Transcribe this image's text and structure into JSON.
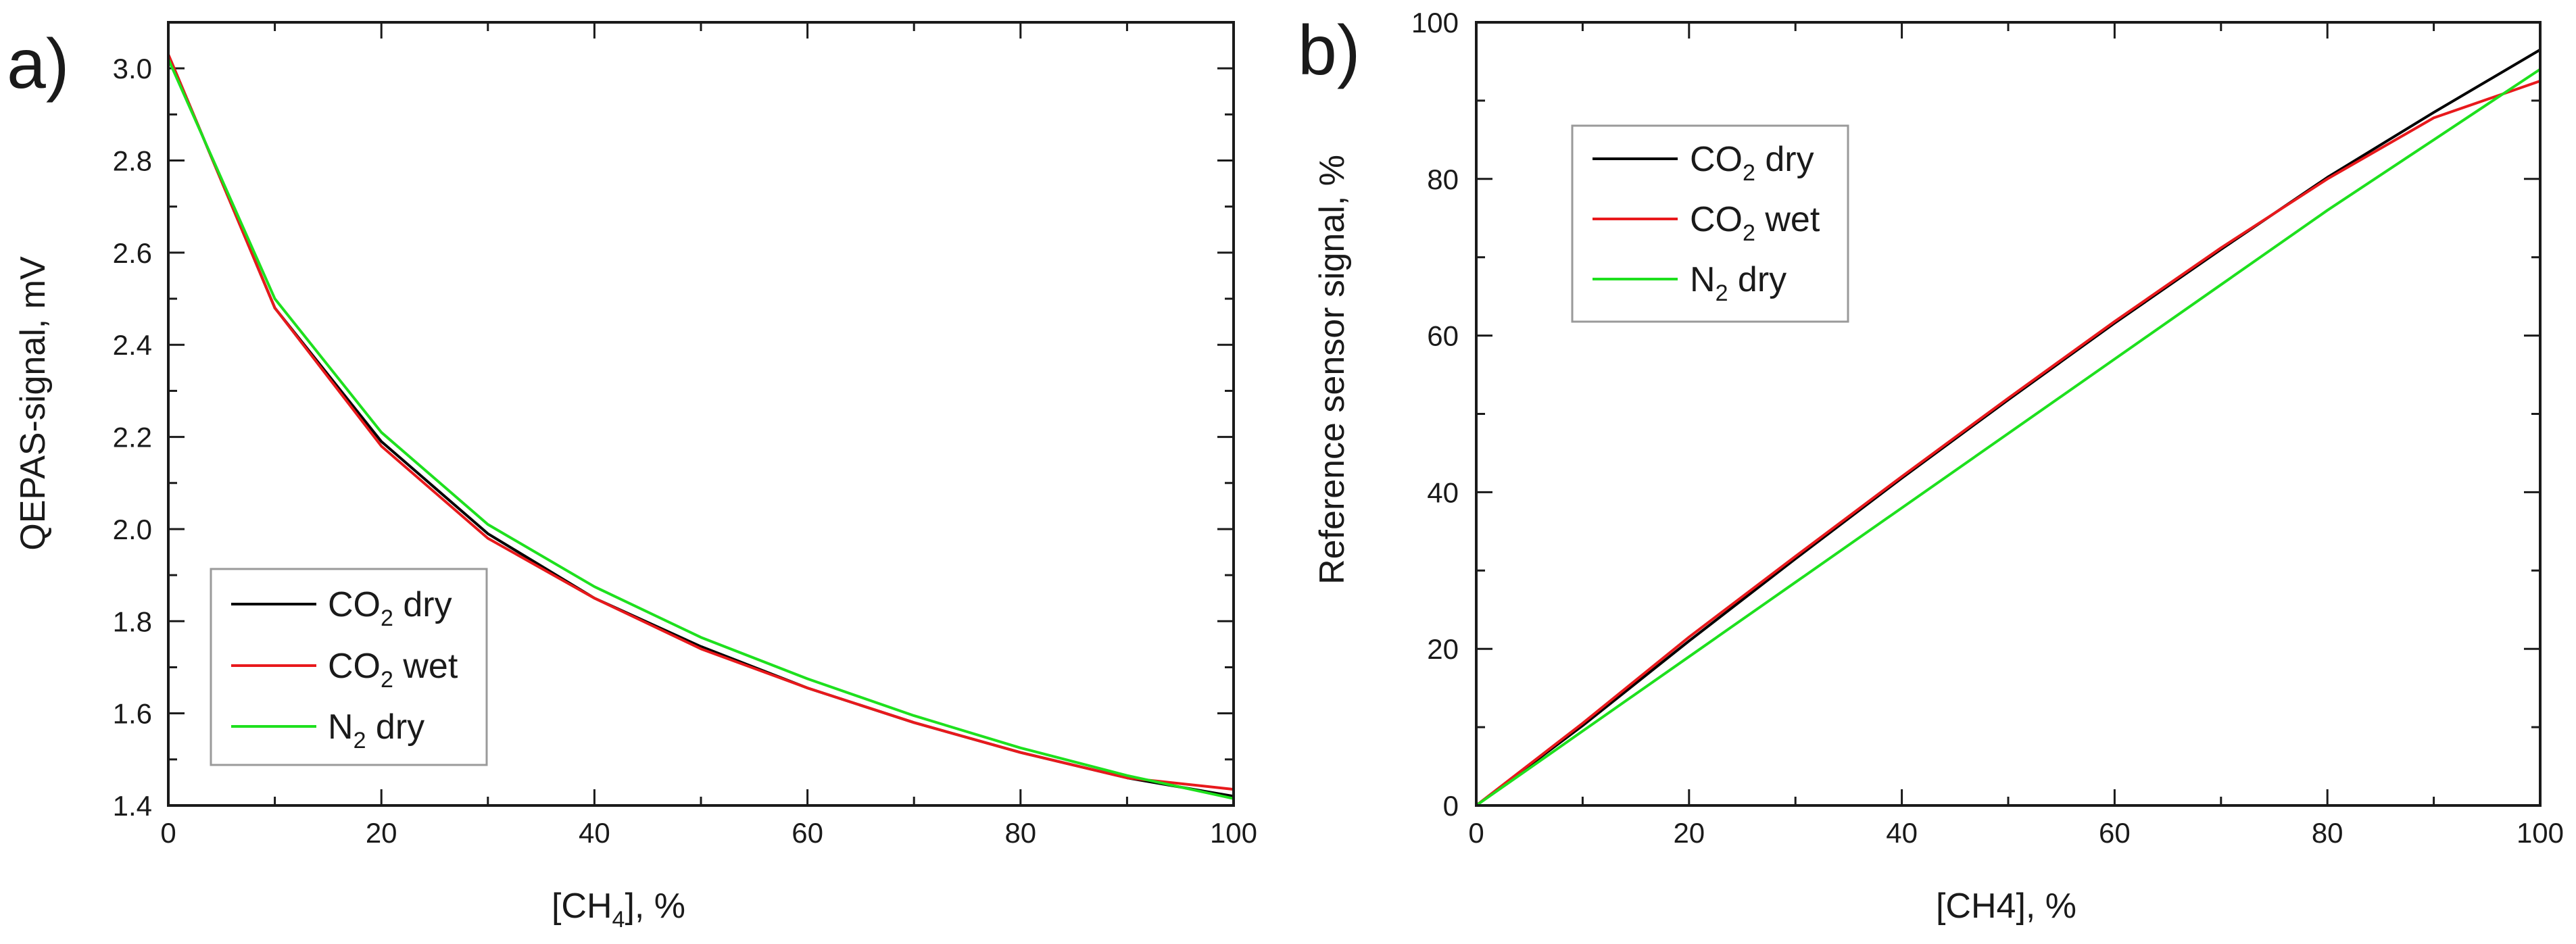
{
  "chart_data": [
    {
      "id": "a",
      "type": "line",
      "panel_label": "a)",
      "xlabel": {
        "main": "[CH",
        "sub": "4",
        "tail": "], %"
      },
      "ylabel": "QEPAS-signal, mV",
      "xlim": [
        0,
        100
      ],
      "ylim": [
        1.4,
        3.1
      ],
      "xticks": [
        0,
        20,
        40,
        60,
        80,
        100
      ],
      "xtick_labels": [
        "0",
        "20",
        "40",
        "60",
        "80",
        "100"
      ],
      "yticks": [
        1.4,
        1.6,
        1.8,
        2.0,
        2.2,
        2.4,
        2.6,
        2.8,
        3.0
      ],
      "ytick_labels": [
        "1.4",
        "1.6",
        "1.8",
        "2.0",
        "2.2",
        "2.4",
        "2.6",
        "2.8",
        "3.0"
      ],
      "legend_position": "bottom-left",
      "x": [
        0,
        10,
        20,
        30,
        40,
        50,
        60,
        70,
        80,
        90,
        100
      ],
      "series": [
        {
          "name": "CO2 dry",
          "label": {
            "main": "CO",
            "sub": "2",
            "tail": " dry"
          },
          "color": "#000000",
          "values": [
            3.03,
            2.48,
            2.19,
            1.99,
            1.85,
            1.745,
            1.655,
            1.58,
            1.515,
            1.46,
            1.42
          ]
        },
        {
          "name": "CO2 wet",
          "label": {
            "main": "CO",
            "sub": "2",
            "tail": " wet"
          },
          "color": "#e8191c",
          "values": [
            3.03,
            2.48,
            2.18,
            1.98,
            1.85,
            1.74,
            1.655,
            1.58,
            1.515,
            1.46,
            1.435
          ]
        },
        {
          "name": "N2 dry",
          "label": {
            "main": "N",
            "sub": "2",
            "tail": " dry"
          },
          "color": "#1ee01e",
          "values": [
            3.02,
            2.5,
            2.21,
            2.01,
            1.875,
            1.765,
            1.675,
            1.595,
            1.525,
            1.465,
            1.415
          ]
        }
      ]
    },
    {
      "id": "b",
      "type": "line",
      "panel_label": "b)",
      "xlabel": {
        "main": "[CH4], %",
        "sub": "",
        "tail": ""
      },
      "ylabel": "Reference sensor signal, %",
      "xlim": [
        0,
        100
      ],
      "ylim": [
        0,
        100
      ],
      "xticks": [
        0,
        20,
        40,
        60,
        80,
        100
      ],
      "xtick_labels": [
        "0",
        "20",
        "40",
        "60",
        "80",
        "100"
      ],
      "yticks": [
        0,
        20,
        40,
        60,
        80,
        100
      ],
      "ytick_labels": [
        "0",
        "20",
        "40",
        "60",
        "80",
        "100"
      ],
      "legend_position": "top-left",
      "x": [
        0,
        10,
        20,
        30,
        40,
        50,
        60,
        70,
        80,
        90,
        100
      ],
      "series": [
        {
          "name": "CO2 dry",
          "label": {
            "main": "CO",
            "sub": "2",
            "tail": " dry"
          },
          "color": "#000000",
          "values": [
            0,
            10.2,
            21.0,
            31.5,
            41.8,
            51.8,
            61.6,
            71.0,
            80.2,
            88.5,
            96.5
          ]
        },
        {
          "name": "CO2 wet",
          "label": {
            "main": "CO",
            "sub": "2",
            "tail": " wet"
          },
          "color": "#e8191c",
          "values": [
            0,
            10.5,
            21.5,
            31.8,
            42.0,
            52.0,
            61.8,
            71.2,
            80.0,
            87.8,
            92.5
          ]
        },
        {
          "name": "N2 dry",
          "label": {
            "main": "N",
            "sub": "2",
            "tail": " dry"
          },
          "color": "#1ee01e",
          "values": [
            0,
            9.5,
            19.0,
            28.5,
            38.0,
            47.5,
            57.0,
            66.5,
            76.0,
            85.0,
            94.0
          ]
        }
      ]
    }
  ]
}
